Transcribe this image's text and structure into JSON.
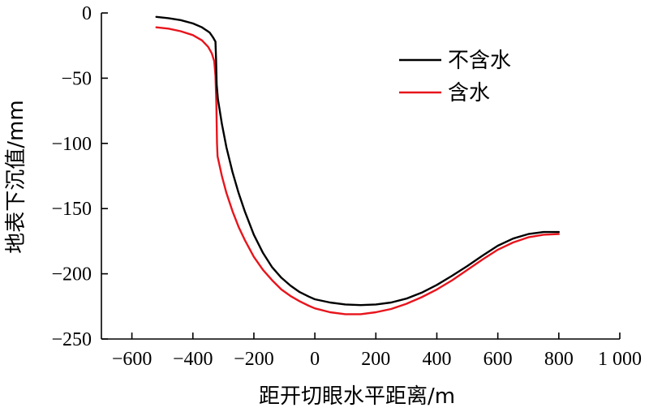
{
  "chart_data": {
    "type": "line",
    "xlabel": "距开切眼水平距离/m",
    "ylabel": "地表下沉值/mm",
    "xlim": [
      -700,
      1000
    ],
    "ylim": [
      -250,
      0
    ],
    "x_ticks": [
      -600,
      -400,
      -200,
      0,
      200,
      400,
      600,
      800,
      1000
    ],
    "x_tick_labels": [
      "−600",
      "−400",
      "−200",
      "0",
      "200",
      "400",
      "600",
      "800",
      "1 000"
    ],
    "y_ticks": [
      0,
      -50,
      -100,
      -150,
      -200,
      -250
    ],
    "y_tick_labels": [
      "0",
      "−50",
      "−100",
      "−150",
      "−200",
      "−250"
    ],
    "grid": false,
    "legend_position": "top-right",
    "series": [
      {
        "name": "不含水",
        "color": "#000000",
        "points": [
          [
            -520,
            -3
          ],
          [
            -480,
            -4
          ],
          [
            -440,
            -5.5
          ],
          [
            -400,
            -8
          ],
          [
            -370,
            -11
          ],
          [
            -345,
            -15
          ],
          [
            -333,
            -19
          ],
          [
            -326,
            -22
          ],
          [
            -324,
            -35
          ],
          [
            -322,
            -55
          ],
          [
            -318,
            -66
          ],
          [
            -305,
            -85
          ],
          [
            -290,
            -103
          ],
          [
            -270,
            -122
          ],
          [
            -250,
            -138
          ],
          [
            -230,
            -152
          ],
          [
            -200,
            -170
          ],
          [
            -170,
            -184
          ],
          [
            -140,
            -195
          ],
          [
            -110,
            -203
          ],
          [
            -80,
            -209
          ],
          [
            -50,
            -214
          ],
          [
            -20,
            -217.5
          ],
          [
            0,
            -219.5
          ],
          [
            50,
            -222
          ],
          [
            100,
            -223.5
          ],
          [
            150,
            -224
          ],
          [
            200,
            -223.5
          ],
          [
            250,
            -222
          ],
          [
            300,
            -219
          ],
          [
            350,
            -214.5
          ],
          [
            400,
            -208.5
          ],
          [
            450,
            -201.5
          ],
          [
            500,
            -194
          ],
          [
            550,
            -186
          ],
          [
            600,
            -178.5
          ],
          [
            650,
            -173
          ],
          [
            700,
            -169.5
          ],
          [
            750,
            -168
          ],
          [
            800,
            -168
          ]
        ]
      },
      {
        "name": "含水",
        "color": "#e8141c",
        "points": [
          [
            -520,
            -11
          ],
          [
            -480,
            -12
          ],
          [
            -440,
            -14
          ],
          [
            -400,
            -17
          ],
          [
            -370,
            -21
          ],
          [
            -350,
            -26
          ],
          [
            -338,
            -31
          ],
          [
            -330,
            -37
          ],
          [
            -326,
            -48
          ],
          [
            -323,
            -70
          ],
          [
            -321,
            -100
          ],
          [
            -319,
            -110
          ],
          [
            -305,
            -125
          ],
          [
            -290,
            -138
          ],
          [
            -270,
            -152
          ],
          [
            -250,
            -164
          ],
          [
            -230,
            -174
          ],
          [
            -200,
            -187
          ],
          [
            -170,
            -197
          ],
          [
            -140,
            -205
          ],
          [
            -110,
            -212
          ],
          [
            -80,
            -217
          ],
          [
            -50,
            -221
          ],
          [
            -20,
            -224.5
          ],
          [
            0,
            -226.5
          ],
          [
            50,
            -229.5
          ],
          [
            100,
            -231
          ],
          [
            150,
            -231
          ],
          [
            200,
            -229.5
          ],
          [
            250,
            -227
          ],
          [
            300,
            -223
          ],
          [
            350,
            -218
          ],
          [
            400,
            -212
          ],
          [
            450,
            -205
          ],
          [
            500,
            -197
          ],
          [
            550,
            -189
          ],
          [
            600,
            -181.5
          ],
          [
            650,
            -176
          ],
          [
            700,
            -172
          ],
          [
            750,
            -170
          ],
          [
            800,
            -169.5
          ]
        ]
      }
    ]
  }
}
